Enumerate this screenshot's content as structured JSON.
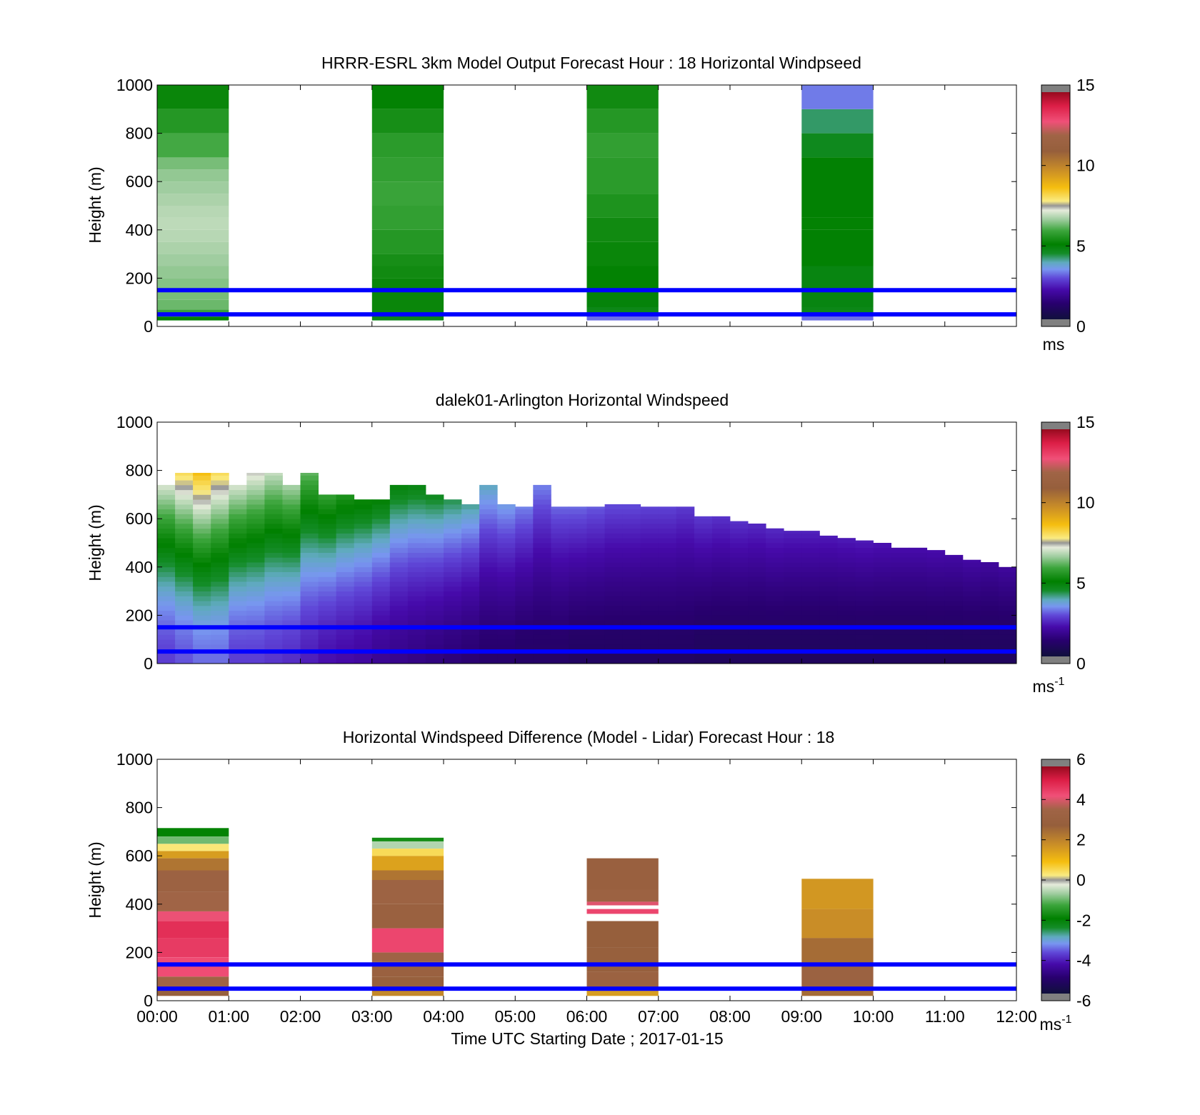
{
  "figure": {
    "xlabel": "Time UTC  Starting Date ; 2017-01-15",
    "x_tick_labels": [
      "00:00",
      "01:00",
      "02:00",
      "03:00",
      "04:00",
      "05:00",
      "06:00",
      "07:00",
      "08:00",
      "09:00",
      "10:00",
      "11:00",
      "12:00"
    ],
    "y_tick_labels": [
      "0",
      "200",
      "400",
      "600",
      "800",
      "1000"
    ],
    "ylabel": "Height (m)",
    "reference_lines_color": "#0000ff"
  },
  "chart_data": [
    {
      "type": "heatmap",
      "title": "HRRR-ESRL 3km Model Output   Forecast Hour : 18 Horizontal Windpseed",
      "xlabel": "",
      "ylabel": "Height (m)",
      "xlim": [
        0,
        12
      ],
      "ylim": [
        0,
        1000
      ],
      "reference_lines_m": [
        150,
        50
      ],
      "colorbar": {
        "min": 0,
        "max": 15,
        "ticks": [
          "0",
          "5",
          "10",
          "15"
        ],
        "unit": "ms",
        "unit_sup": ""
      },
      "columns": [
        {
          "x_start": 0,
          "x_end": 1,
          "layers": [
            {
              "z0": 25,
              "z1": 40,
              "v": 5.0
            },
            {
              "z0": 40,
              "z1": 70,
              "v": 5.8
            },
            {
              "z0": 70,
              "z1": 110,
              "v": 6.2
            },
            {
              "z0": 110,
              "z1": 150,
              "v": 6.3
            },
            {
              "z0": 150,
              "z1": 200,
              "v": 6.4
            },
            {
              "z0": 200,
              "z1": 250,
              "v": 6.5
            },
            {
              "z0": 250,
              "z1": 300,
              "v": 6.6
            },
            {
              "z0": 300,
              "z1": 350,
              "v": 6.7
            },
            {
              "z0": 350,
              "z1": 400,
              "v": 6.8
            },
            {
              "z0": 400,
              "z1": 450,
              "v": 6.85
            },
            {
              "z0": 450,
              "z1": 500,
              "v": 6.8
            },
            {
              "z0": 500,
              "z1": 550,
              "v": 6.7
            },
            {
              "z0": 550,
              "z1": 600,
              "v": 6.6
            },
            {
              "z0": 600,
              "z1": 650,
              "v": 6.5
            },
            {
              "z0": 650,
              "z1": 700,
              "v": 6.3
            },
            {
              "z0": 700,
              "z1": 800,
              "v": 5.9
            },
            {
              "z0": 800,
              "z1": 900,
              "v": 5.5
            },
            {
              "z0": 900,
              "z1": 1000,
              "v": 5.1
            }
          ]
        },
        {
          "x_start": 3,
          "x_end": 4,
          "layers": [
            {
              "z0": 25,
              "z1": 40,
              "v": 4.6
            },
            {
              "z0": 40,
              "z1": 200,
              "v": 5.1
            },
            {
              "z0": 200,
              "z1": 250,
              "v": 5.2
            },
            {
              "z0": 250,
              "z1": 300,
              "v": 5.3
            },
            {
              "z0": 300,
              "z1": 400,
              "v": 5.5
            },
            {
              "z0": 400,
              "z1": 500,
              "v": 5.7
            },
            {
              "z0": 500,
              "z1": 600,
              "v": 5.8
            },
            {
              "z0": 600,
              "z1": 700,
              "v": 5.7
            },
            {
              "z0": 700,
              "z1": 800,
              "v": 5.6
            },
            {
              "z0": 800,
              "z1": 900,
              "v": 5.3
            },
            {
              "z0": 900,
              "z1": 1000,
              "v": 5.0
            }
          ]
        },
        {
          "x_start": 6,
          "x_end": 7,
          "layers": [
            {
              "z0": 25,
              "z1": 45,
              "v": 3.0
            },
            {
              "z0": 45,
              "z1": 80,
              "v": 4.6
            },
            {
              "z0": 80,
              "z1": 150,
              "v": 4.8
            },
            {
              "z0": 150,
              "z1": 250,
              "v": 5.0
            },
            {
              "z0": 250,
              "z1": 350,
              "v": 5.1
            },
            {
              "z0": 350,
              "z1": 450,
              "v": 5.2
            },
            {
              "z0": 450,
              "z1": 550,
              "v": 5.4
            },
            {
              "z0": 550,
              "z1": 700,
              "v": 5.6
            },
            {
              "z0": 700,
              "z1": 800,
              "v": 5.7
            },
            {
              "z0": 800,
              "z1": 900,
              "v": 5.5
            },
            {
              "z0": 900,
              "z1": 1000,
              "v": 5.2
            }
          ]
        },
        {
          "x_start": 9,
          "x_end": 10,
          "layers": [
            {
              "z0": 25,
              "z1": 45,
              "v": 3.0
            },
            {
              "z0": 45,
              "z1": 80,
              "v": 4.6
            },
            {
              "z0": 80,
              "z1": 250,
              "v": 4.7
            },
            {
              "z0": 250,
              "z1": 400,
              "v": 4.9
            },
            {
              "z0": 400,
              "z1": 450,
              "v": 5.0
            },
            {
              "z0": 450,
              "z1": 700,
              "v": 4.9
            },
            {
              "z0": 700,
              "z1": 800,
              "v": 4.5
            },
            {
              "z0": 800,
              "z1": 900,
              "v": 4.1
            },
            {
              "z0": 900,
              "z1": 1000,
              "v": 3.1
            }
          ]
        }
      ]
    },
    {
      "type": "heatmap",
      "title": "dalek01-Arlington  Horizontal Windspeed",
      "xlabel": "",
      "ylabel": "Height (m)",
      "xlim": [
        0,
        12
      ],
      "ylim": [
        0,
        1000
      ],
      "reference_lines_m": [
        150,
        50
      ],
      "colorbar": {
        "min": 0,
        "max": 15,
        "ticks": [
          "0",
          "5",
          "10",
          "15"
        ],
        "unit": "ms",
        "unit_sup": "-1"
      },
      "time_step_h": 0.25,
      "profiles": [
        {
          "t": 0.0,
          "top": 740,
          "lo": 2.6,
          "hi": 7.2
        },
        {
          "t": 0.25,
          "top": 790,
          "lo": 2.8,
          "hi": 8.2
        },
        {
          "t": 0.5,
          "top": 790,
          "lo": 3.0,
          "hi": 8.8
        },
        {
          "t": 0.75,
          "top": 790,
          "lo": 3.0,
          "hi": 8.2
        },
        {
          "t": 1.0,
          "top": 740,
          "lo": 2.6,
          "hi": 7.2
        },
        {
          "t": 1.25,
          "top": 790,
          "lo": 2.6,
          "hi": 7.4
        },
        {
          "t": 1.5,
          "top": 790,
          "lo": 2.5,
          "hi": 7.0
        },
        {
          "t": 1.75,
          "top": 740,
          "lo": 2.4,
          "hi": 6.8
        },
        {
          "t": 2.0,
          "top": 790,
          "lo": 2.2,
          "hi": 6.2
        },
        {
          "t": 2.25,
          "top": 700,
          "lo": 2.0,
          "hi": 5.8
        },
        {
          "t": 2.5,
          "top": 700,
          "lo": 1.9,
          "hi": 5.5
        },
        {
          "t": 2.75,
          "top": 680,
          "lo": 1.8,
          "hi": 5.2
        },
        {
          "t": 3.0,
          "top": 680,
          "lo": 1.6,
          "hi": 5.0
        },
        {
          "t": 3.25,
          "top": 740,
          "lo": 1.5,
          "hi": 4.9
        },
        {
          "t": 3.5,
          "top": 740,
          "lo": 1.4,
          "hi": 4.8
        },
        {
          "t": 3.75,
          "top": 700,
          "lo": 1.3,
          "hi": 4.6
        },
        {
          "t": 4.0,
          "top": 680,
          "lo": 1.2,
          "hi": 4.3
        },
        {
          "t": 4.25,
          "top": 660,
          "lo": 1.1,
          "hi": 4.0
        },
        {
          "t": 4.5,
          "top": 740,
          "lo": 1.0,
          "hi": 3.8
        },
        {
          "t": 4.75,
          "top": 660,
          "lo": 1.0,
          "hi": 3.5
        },
        {
          "t": 5.0,
          "top": 650,
          "lo": 0.9,
          "hi": 3.2
        },
        {
          "t": 5.25,
          "top": 740,
          "lo": 0.9,
          "hi": 3.2
        },
        {
          "t": 5.5,
          "top": 650,
          "lo": 0.9,
          "hi": 3.0
        },
        {
          "t": 5.75,
          "top": 650,
          "lo": 0.8,
          "hi": 3.0
        },
        {
          "t": 6.0,
          "top": 650,
          "lo": 0.8,
          "hi": 2.9
        },
        {
          "t": 6.25,
          "top": 660,
          "lo": 0.8,
          "hi": 2.8
        },
        {
          "t": 6.5,
          "top": 660,
          "lo": 0.8,
          "hi": 2.8
        },
        {
          "t": 6.75,
          "top": 650,
          "lo": 0.8,
          "hi": 2.7
        },
        {
          "t": 7.0,
          "top": 650,
          "lo": 0.8,
          "hi": 2.7
        },
        {
          "t": 7.25,
          "top": 650,
          "lo": 0.8,
          "hi": 2.6
        },
        {
          "t": 7.5,
          "top": 610,
          "lo": 0.7,
          "hi": 2.6
        },
        {
          "t": 7.75,
          "top": 610,
          "lo": 0.7,
          "hi": 2.5
        },
        {
          "t": 8.0,
          "top": 590,
          "lo": 0.7,
          "hi": 2.5
        },
        {
          "t": 8.25,
          "top": 580,
          "lo": 0.7,
          "hi": 2.4
        },
        {
          "t": 8.5,
          "top": 560,
          "lo": 0.7,
          "hi": 2.4
        },
        {
          "t": 8.75,
          "top": 550,
          "lo": 0.7,
          "hi": 2.3
        },
        {
          "t": 9.0,
          "top": 550,
          "lo": 0.7,
          "hi": 2.3
        },
        {
          "t": 9.25,
          "top": 530,
          "lo": 0.7,
          "hi": 2.2
        },
        {
          "t": 9.5,
          "top": 520,
          "lo": 0.7,
          "hi": 2.2
        },
        {
          "t": 9.75,
          "top": 510,
          "lo": 0.7,
          "hi": 2.2
        },
        {
          "t": 10.0,
          "top": 500,
          "lo": 0.7,
          "hi": 2.1
        },
        {
          "t": 10.25,
          "top": 480,
          "lo": 0.7,
          "hi": 2.0
        },
        {
          "t": 10.5,
          "top": 480,
          "lo": 0.7,
          "hi": 2.0
        },
        {
          "t": 10.75,
          "top": 470,
          "lo": 0.7,
          "hi": 2.0
        },
        {
          "t": 11.0,
          "top": 450,
          "lo": 0.7,
          "hi": 1.9
        },
        {
          "t": 11.25,
          "top": 430,
          "lo": 0.7,
          "hi": 1.9
        },
        {
          "t": 11.5,
          "top": 420,
          "lo": 0.7,
          "hi": 1.8
        },
        {
          "t": 11.75,
          "top": 400,
          "lo": 0.7,
          "hi": 1.8
        }
      ]
    },
    {
      "type": "heatmap",
      "title": "Horizontal Windspeed Difference (Model - Lidar) Forecast Hour : 18",
      "xlabel": "Time UTC  Starting Date ; 2017-01-15",
      "ylabel": "Height (m)",
      "xlim": [
        0,
        12
      ],
      "ylim": [
        0,
        1000
      ],
      "reference_lines_m": [
        150,
        50
      ],
      "colorbar": {
        "min": -6,
        "max": 6,
        "ticks": [
          "-6",
          "-4",
          "-2",
          "0",
          "2",
          "4",
          "6"
        ],
        "unit": "ms",
        "unit_sup": "-1"
      },
      "columns": [
        {
          "x_start": 0,
          "x_end": 1,
          "layers": [
            {
              "z0": 20,
              "z1": 40,
              "v": 3.0
            },
            {
              "z0": 40,
              "z1": 100,
              "v": 3.6
            },
            {
              "z0": 100,
              "z1": 180,
              "v": 4.5
            },
            {
              "z0": 180,
              "z1": 260,
              "v": 4.8
            },
            {
              "z0": 260,
              "z1": 330,
              "v": 5.0
            },
            {
              "z0": 330,
              "z1": 370,
              "v": 4.4
            },
            {
              "z0": 370,
              "z1": 450,
              "v": 3.7
            },
            {
              "z0": 450,
              "z1": 540,
              "v": 3.4
            },
            {
              "z0": 540,
              "z1": 590,
              "v": 2.4
            },
            {
              "z0": 590,
              "z1": 620,
              "v": 1.6
            },
            {
              "z0": 620,
              "z1": 650,
              "v": 0.3
            },
            {
              "z0": 650,
              "z1": 680,
              "v": -1.0
            },
            {
              "z0": 680,
              "z1": 715,
              "v": -2.0
            }
          ]
        },
        {
          "x_start": 3,
          "x_end": 4,
          "layers": [
            {
              "z0": 20,
              "z1": 40,
              "v": 2.0
            },
            {
              "z0": 40,
              "z1": 100,
              "v": 3.0
            },
            {
              "z0": 100,
              "z1": 160,
              "v": 3.2
            },
            {
              "z0": 160,
              "z1": 200,
              "v": 3.6
            },
            {
              "z0": 200,
              "z1": 300,
              "v": 4.6
            },
            {
              "z0": 300,
              "z1": 400,
              "v": 3.2
            },
            {
              "z0": 400,
              "z1": 500,
              "v": 3.5
            },
            {
              "z0": 500,
              "z1": 540,
              "v": 2.4
            },
            {
              "z0": 540,
              "z1": 600,
              "v": 1.5
            },
            {
              "z0": 600,
              "z1": 630,
              "v": 0.5
            },
            {
              "z0": 630,
              "z1": 660,
              "v": -0.6
            },
            {
              "z0": 660,
              "z1": 675,
              "v": -1.8
            }
          ]
        },
        {
          "x_start": 6,
          "x_end": 7,
          "layers": [
            {
              "z0": 20,
              "z1": 40,
              "v": 1.6
            },
            {
              "z0": 40,
              "z1": 120,
              "v": 3.3
            },
            {
              "z0": 120,
              "z1": 220,
              "v": 3.0
            },
            {
              "z0": 220,
              "z1": 330,
              "v": 2.9
            },
            {
              "z0": 360,
              "z1": 380,
              "v": 4.6
            },
            {
              "z0": 395,
              "z1": 410,
              "v": 4.3
            },
            {
              "z0": 410,
              "z1": 460,
              "v": 3.4
            },
            {
              "z0": 460,
              "z1": 590,
              "v": 3.1
            }
          ]
        },
        {
          "x_start": 9,
          "x_end": 10,
          "layers": [
            {
              "z0": 20,
              "z1": 40,
              "v": 2.6
            },
            {
              "z0": 40,
              "z1": 150,
              "v": 3.3
            },
            {
              "z0": 150,
              "z1": 260,
              "v": 2.6
            },
            {
              "z0": 260,
              "z1": 380,
              "v": 1.9
            },
            {
              "z0": 380,
              "z1": 505,
              "v": 1.7
            }
          ]
        }
      ]
    }
  ]
}
